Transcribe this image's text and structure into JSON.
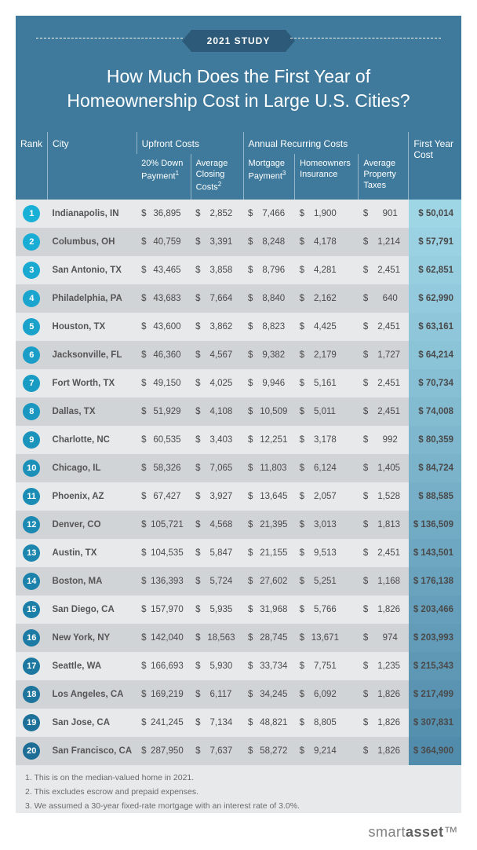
{
  "colors": {
    "header_bg": "#3f7a9c",
    "badge_bg": "#2c5a78",
    "text_light": "#ffffff",
    "row_even": "#e7e9ea",
    "row_odd": "#d1d4d6",
    "cell_text": "#4a4a4a",
    "city_text": "#555555"
  },
  "header": {
    "badge": "2021 STUDY",
    "title_line1": "How Much Does the First Year of",
    "title_line2": "Homeownership Cost in Large U.S. Cities?"
  },
  "columns": {
    "rank": "Rank",
    "city": "City",
    "group_upfront": "Upfront Costs",
    "group_recurring": "Annual Recurring Costs",
    "first_year": "First Year Cost",
    "down_payment": "20% Down Payment",
    "down_payment_sup": "1",
    "closing": "Average Closing Costs",
    "closing_sup": "2",
    "mortgage": "Mortgage Payment",
    "mortgage_sup": "3",
    "insurance": "Homeowners Insurance",
    "taxes": "Average Property Taxes"
  },
  "rank_badge_gradient": {
    "start": "#19b0d8",
    "end": "#1d6d96"
  },
  "total_bg_gradient": {
    "start": "#9fd6e6",
    "end": "#528cac"
  },
  "rows": [
    {
      "rank": 1,
      "city": "Indianapolis, IN",
      "down": "36,895",
      "closing": "2,852",
      "mortgage": "7,466",
      "ins": "1,900",
      "tax": "901",
      "total": "50,014"
    },
    {
      "rank": 2,
      "city": "Columbus, OH",
      "down": "40,759",
      "closing": "3,391",
      "mortgage": "8,248",
      "ins": "4,178",
      "tax": "1,214",
      "total": "57,791"
    },
    {
      "rank": 3,
      "city": "San Antonio, TX",
      "down": "43,465",
      "closing": "3,858",
      "mortgage": "8,796",
      "ins": "4,281",
      "tax": "2,451",
      "total": "62,851"
    },
    {
      "rank": 4,
      "city": "Philadelphia, PA",
      "down": "43,683",
      "closing": "7,664",
      "mortgage": "8,840",
      "ins": "2,162",
      "tax": "640",
      "total": "62,990"
    },
    {
      "rank": 5,
      "city": "Houston, TX",
      "down": "43,600",
      "closing": "3,862",
      "mortgage": "8,823",
      "ins": "4,425",
      "tax": "2,451",
      "total": "63,161"
    },
    {
      "rank": 6,
      "city": "Jacksonville, FL",
      "down": "46,360",
      "closing": "4,567",
      "mortgage": "9,382",
      "ins": "2,179",
      "tax": "1,727",
      "total": "64,214"
    },
    {
      "rank": 7,
      "city": "Fort Worth, TX",
      "down": "49,150",
      "closing": "4,025",
      "mortgage": "9,946",
      "ins": "5,161",
      "tax": "2,451",
      "total": "70,734"
    },
    {
      "rank": 8,
      "city": "Dallas, TX",
      "down": "51,929",
      "closing": "4,108",
      "mortgage": "10,509",
      "ins": "5,011",
      "tax": "2,451",
      "total": "74,008"
    },
    {
      "rank": 9,
      "city": "Charlotte, NC",
      "down": "60,535",
      "closing": "3,403",
      "mortgage": "12,251",
      "ins": "3,178",
      "tax": "992",
      "total": "80,359"
    },
    {
      "rank": 10,
      "city": "Chicago, IL",
      "down": "58,326",
      "closing": "7,065",
      "mortgage": "11,803",
      "ins": "6,124",
      "tax": "1,405",
      "total": "84,724"
    },
    {
      "rank": 11,
      "city": "Phoenix, AZ",
      "down": "67,427",
      "closing": "3,927",
      "mortgage": "13,645",
      "ins": "2,057",
      "tax": "1,528",
      "total": "88,585"
    },
    {
      "rank": 12,
      "city": "Denver, CO",
      "down": "105,721",
      "closing": "4,568",
      "mortgage": "21,395",
      "ins": "3,013",
      "tax": "1,813",
      "total": "136,509"
    },
    {
      "rank": 13,
      "city": "Austin, TX",
      "down": "104,535",
      "closing": "5,847",
      "mortgage": "21,155",
      "ins": "9,513",
      "tax": "2,451",
      "total": "143,501"
    },
    {
      "rank": 14,
      "city": "Boston, MA",
      "down": "136,393",
      "closing": "5,724",
      "mortgage": "27,602",
      "ins": "5,251",
      "tax": "1,168",
      "total": "176,138"
    },
    {
      "rank": 15,
      "city": "San Diego, CA",
      "down": "157,970",
      "closing": "5,935",
      "mortgage": "31,968",
      "ins": "5,766",
      "tax": "1,826",
      "total": "203,466"
    },
    {
      "rank": 16,
      "city": "New York, NY",
      "down": "142,040",
      "closing": "18,563",
      "mortgage": "28,745",
      "ins": "13,671",
      "tax": "974",
      "total": "203,993"
    },
    {
      "rank": 17,
      "city": "Seattle, WA",
      "down": "166,693",
      "closing": "5,930",
      "mortgage": "33,734",
      "ins": "7,751",
      "tax": "1,235",
      "total": "215,343"
    },
    {
      "rank": 18,
      "city": "Los Angeles, CA",
      "down": "169,219",
      "closing": "6,117",
      "mortgage": "34,245",
      "ins": "6,092",
      "tax": "1,826",
      "total": "217,499"
    },
    {
      "rank": 19,
      "city": "San Jose, CA",
      "down": "241,245",
      "closing": "7,134",
      "mortgage": "48,821",
      "ins": "8,805",
      "tax": "1,826",
      "total": "307,831"
    },
    {
      "rank": 20,
      "city": "San Francisco, CA",
      "down": "287,950",
      "closing": "7,637",
      "mortgage": "58,272",
      "ins": "9,214",
      "tax": "1,826",
      "total": "364,900"
    }
  ],
  "footnotes": [
    "1. This is on the median-valued home in 2021.",
    "2. This excludes escrow and prepaid expenses.",
    "3. We assumed a 30-year fixed-rate mortgage with an interest rate of 3.0%."
  ],
  "brand": {
    "part1": "smart",
    "part2": "asset",
    "tm": "™"
  }
}
